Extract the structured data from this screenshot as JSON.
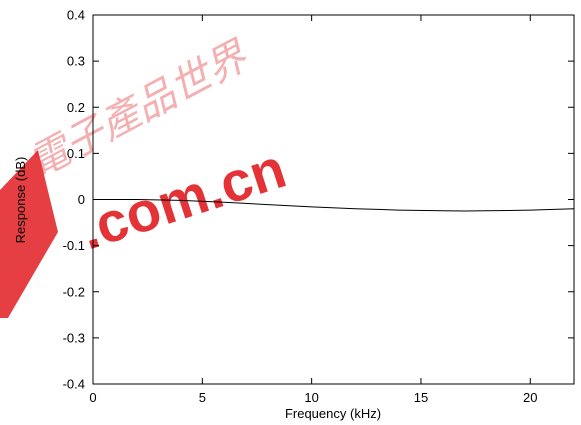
{
  "chart_data": {
    "type": "line",
    "title": "",
    "xlabel": "Frequency (kHz)",
    "ylabel": "Response (dB)",
    "xlim": [
      0,
      22
    ],
    "ylim": [
      -0.4,
      0.4
    ],
    "x_ticks": [
      0,
      5,
      10,
      15,
      20
    ],
    "x_tick_labels": [
      "0",
      "5",
      "10",
      "15",
      "20"
    ],
    "y_ticks": [
      0.4,
      0.3,
      0.2,
      0.1,
      0,
      -0.1,
      -0.2,
      -0.3,
      -0.4
    ],
    "y_tick_labels": [
      "0.4",
      "0.3",
      "0.2",
      "0.1",
      "0",
      "-0.1",
      "-0.2",
      "-0.3",
      "-0.4"
    ],
    "grid": false,
    "legend": "none",
    "series": [
      {
        "color": "#000000",
        "x": [
          0,
          2,
          4,
          6,
          8,
          10,
          12,
          14,
          16,
          17,
          18,
          20,
          22
        ],
        "y": [
          0,
          0,
          -0.002,
          -0.006,
          -0.011,
          -0.016,
          -0.02,
          -0.023,
          -0.0245,
          -0.025,
          -0.0245,
          -0.023,
          -0.02
        ]
      }
    ]
  },
  "watermark": {
    "text_cjk": "電子產品世界",
    "text_latin": ".com.cn",
    "color": "#e11d22"
  }
}
